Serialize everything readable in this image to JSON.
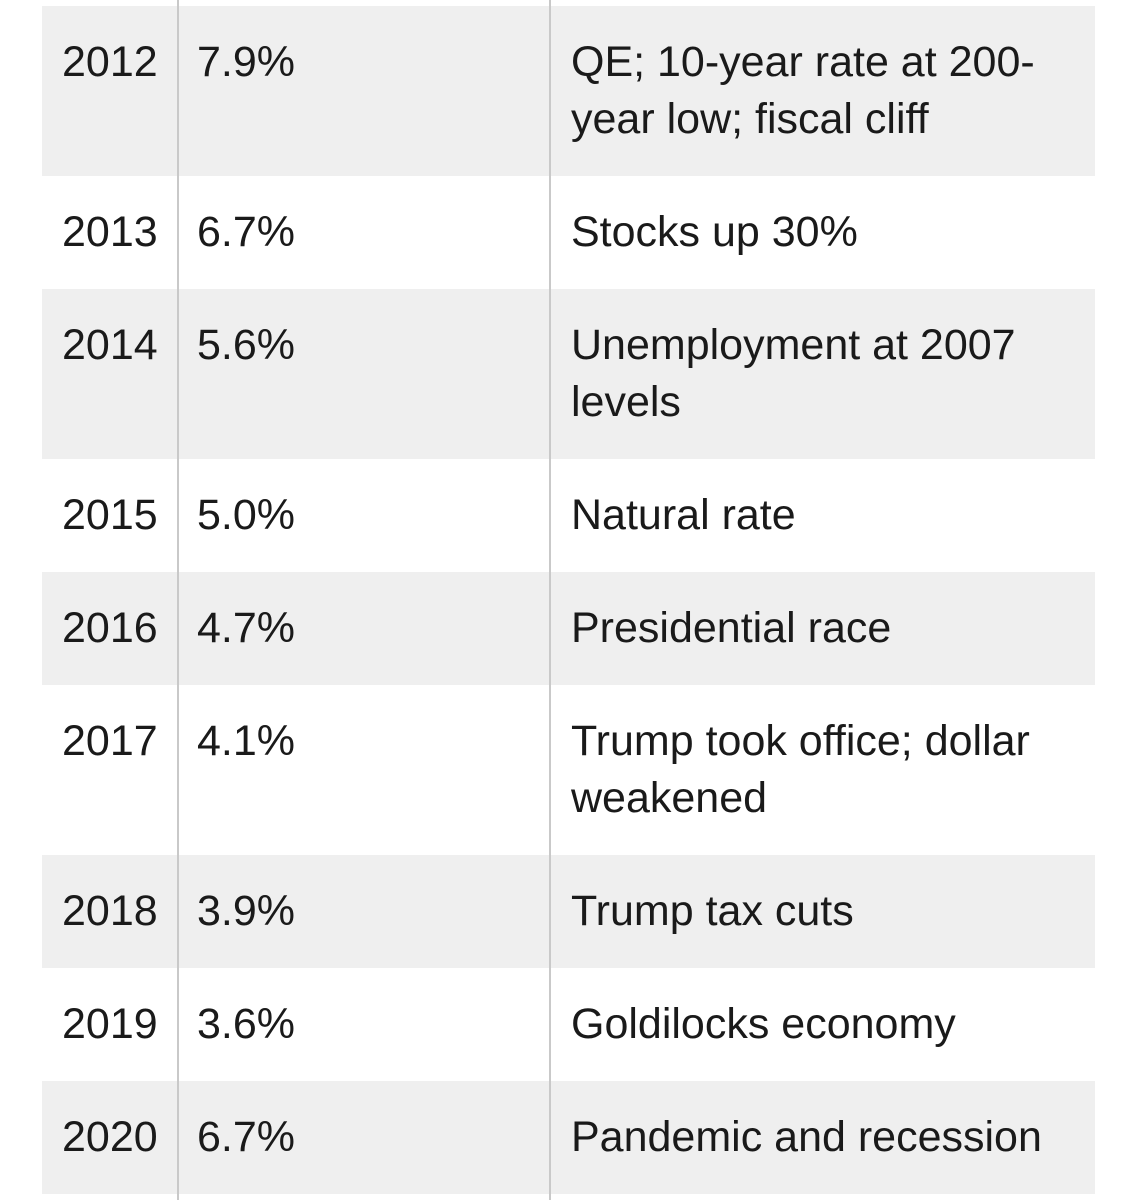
{
  "chart_data": {
    "type": "table",
    "columns": [
      "year",
      "unemployment_rate",
      "note"
    ],
    "rows": [
      {
        "year": "2012",
        "rate": "7.9%",
        "note": "QE; 10-year rate at 200-\nyear low; fiscal cliff"
      },
      {
        "year": "2013",
        "rate": "6.7%",
        "note": "Stocks up 30%"
      },
      {
        "year": "2014",
        "rate": "5.6%",
        "note": "Unemployment at 2007\nlevels"
      },
      {
        "year": "2015",
        "rate": "5.0%",
        "note": "Natural rate"
      },
      {
        "year": "2016",
        "rate": "4.7%",
        "note": "Presidential race"
      },
      {
        "year": "2017",
        "rate": "4.1%",
        "note": "Trump took office; dollar\nweakened"
      },
      {
        "year": "2018",
        "rate": "3.9%",
        "note": "Trump tax cuts"
      },
      {
        "year": "2019",
        "rate": "3.6%",
        "note": "Goldilocks economy"
      },
      {
        "year": "2020",
        "rate": "6.7%",
        "note": "Pandemic and recession"
      }
    ],
    "layout": {
      "row_striping": "first visible row shaded, alternating",
      "grid": "two vertical column rules, full height"
    }
  },
  "colors": {
    "row_shaded": "#efefef",
    "row_plain": "#ffffff",
    "divider": "#c9c9c9",
    "text": "#1a1a1a",
    "background": "#ffffff"
  }
}
